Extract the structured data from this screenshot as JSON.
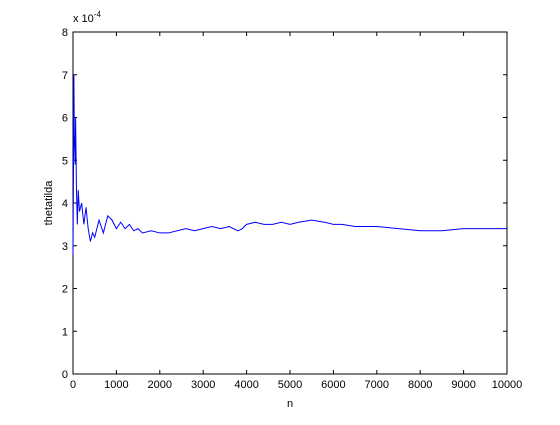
{
  "chart_data": {
    "type": "line",
    "xlabel": "n",
    "ylabel": "thetatilda",
    "y_multiplier": "x 10",
    "y_multiplier_exponent": "-4",
    "x": [
      0,
      10,
      20,
      30,
      50,
      60,
      80,
      100,
      120,
      150,
      200,
      250,
      300,
      350,
      400,
      450,
      500,
      600,
      700,
      800,
      900,
      1000,
      1100,
      1200,
      1300,
      1400,
      1500,
      1600,
      1800,
      2000,
      2200,
      2400,
      2600,
      2800,
      3000,
      3200,
      3400,
      3600,
      3800,
      3900,
      4000,
      4200,
      4400,
      4600,
      4800,
      5000,
      5200,
      5500,
      5800,
      6000,
      6200,
      6500,
      7000,
      7500,
      8000,
      8500,
      9000,
      9500,
      10000
    ],
    "values": [
      2.8,
      4.5,
      7.0,
      5.6,
      4.9,
      6.0,
      4.3,
      3.5,
      4.3,
      3.8,
      4.0,
      3.5,
      3.9,
      3.4,
      3.1,
      3.3,
      3.2,
      3.6,
      3.3,
      3.7,
      3.6,
      3.4,
      3.55,
      3.4,
      3.5,
      3.35,
      3.4,
      3.3,
      3.35,
      3.3,
      3.3,
      3.35,
      3.4,
      3.35,
      3.4,
      3.45,
      3.4,
      3.45,
      3.35,
      3.4,
      3.5,
      3.55,
      3.5,
      3.5,
      3.55,
      3.5,
      3.55,
      3.6,
      3.55,
      3.5,
      3.5,
      3.45,
      3.45,
      3.4,
      3.35,
      3.35,
      3.4,
      3.4,
      3.4
    ],
    "color": "#0000ff",
    "xlim": [
      0,
      10000
    ],
    "xticks": [
      0,
      1000,
      2000,
      3000,
      4000,
      5000,
      6000,
      7000,
      8000,
      9000,
      10000
    ],
    "ylim": [
      0,
      8
    ],
    "yticks": [
      0,
      1,
      2,
      3,
      4,
      5,
      6,
      7,
      8
    ]
  }
}
